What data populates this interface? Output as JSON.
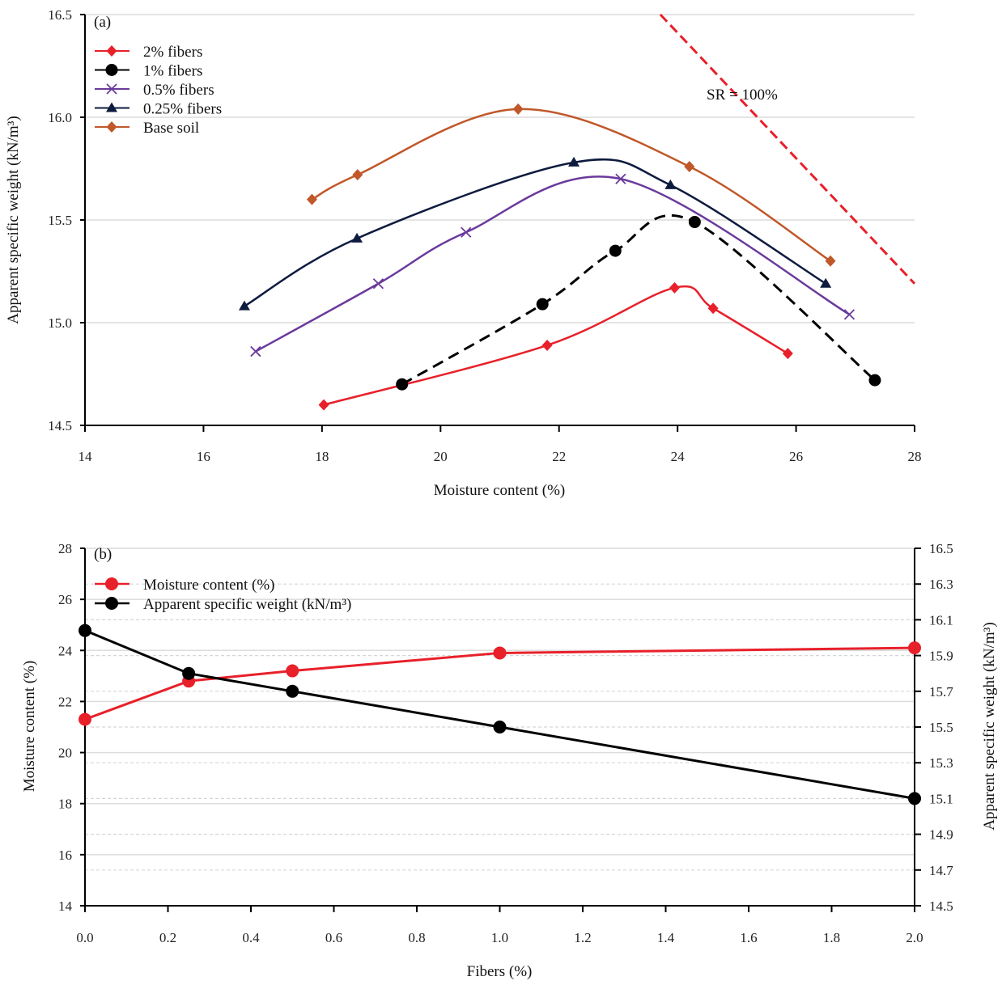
{
  "chart_data": [
    {
      "type": "line",
      "panel_label": "(a)",
      "xlabel": "Moisture content (%)",
      "ylabel": "Apparent specific weight (kN/m³)",
      "xlim": [
        14,
        28
      ],
      "ylim": [
        14.5,
        16.5
      ],
      "xticks": [
        "14",
        "16",
        "18",
        "20",
        "22",
        "24",
        "26",
        "28"
      ],
      "yticks": [
        "14.5",
        "15.0",
        "15.5",
        "16.0",
        "16.5"
      ],
      "grid": true,
      "legend": "top-left",
      "annotation": "SR = 100%",
      "series": [
        {
          "name": "2% fibers",
          "color": "#e8202a",
          "marker": "diamond",
          "dash": false,
          "x": [
            18.03,
            21.8,
            23.95,
            24.6,
            25.86
          ],
          "y": [
            14.6,
            14.89,
            15.17,
            15.07,
            14.85
          ]
        },
        {
          "name": "1% fibers",
          "color": "#000000",
          "marker": "circle",
          "dash": true,
          "x": [
            19.35,
            21.72,
            22.95,
            24.29,
            27.33
          ],
          "y": [
            14.7,
            15.09,
            15.35,
            15.49,
            14.72
          ]
        },
        {
          "name": "0.5% fibers",
          "color": "#6a3a9c",
          "marker": "x",
          "dash": false,
          "x": [
            16.88,
            18.95,
            20.43,
            23.04,
            26.9
          ],
          "y": [
            14.86,
            15.19,
            15.44,
            15.7,
            15.04
          ]
        },
        {
          "name": "0.25% fibers",
          "color": "#0d1b3e",
          "marker": "triangle",
          "dash": false,
          "x": [
            16.69,
            18.59,
            22.25,
            23.88,
            26.5
          ],
          "y": [
            15.08,
            15.41,
            15.78,
            15.67,
            15.19
          ]
        },
        {
          "name": "Base soil",
          "color": "#c0582a",
          "marker": "diamond",
          "dash": false,
          "x": [
            17.83,
            18.6,
            21.31,
            24.2,
            26.58
          ],
          "y": [
            15.6,
            15.72,
            16.04,
            15.76,
            15.3
          ]
        }
      ],
      "sr_line": {
        "color": "#e8202a",
        "x": [
          23.71,
          28
        ],
        "y": [
          16.5,
          15.19
        ]
      }
    },
    {
      "type": "line",
      "panel_label": "(b)",
      "xlabel": "Fibers (%)",
      "ylabel": "Moisture content (%)",
      "ylabel_right": "Apparent specific weight (kN/m³)",
      "xlim": [
        0,
        2
      ],
      "ylim": [
        14,
        28
      ],
      "ylim_right": [
        14.5,
        16.5
      ],
      "xticks": [
        "0.0",
        "0.2",
        "0.4",
        "0.6",
        "0.8",
        "1.0",
        "1.2",
        "1.4",
        "1.6",
        "1.8",
        "2.0"
      ],
      "yticks": [
        "14",
        "16",
        "18",
        "20",
        "22",
        "24",
        "26",
        "28"
      ],
      "yticks_right": [
        "14.5",
        "14.7",
        "14.9",
        "15.1",
        "15.3",
        "15.5",
        "15.7",
        "15.9",
        "16.1",
        "16.3",
        "16.5"
      ],
      "grid": true,
      "legend": "top-left",
      "series": [
        {
          "name": "Moisture content (%)",
          "color": "#e8202a",
          "axis": "left",
          "x": [
            0,
            0.25,
            0.5,
            1.0,
            2.0
          ],
          "y": [
            21.3,
            22.8,
            23.2,
            23.9,
            24.1
          ]
        },
        {
          "name": "Apparent specific weight (kN/m³)",
          "color": "#000000",
          "axis": "right",
          "x": [
            0,
            0.25,
            0.5,
            1.0,
            2.0
          ],
          "y": [
            16.04,
            15.8,
            15.7,
            15.5,
            15.1
          ]
        }
      ]
    }
  ]
}
